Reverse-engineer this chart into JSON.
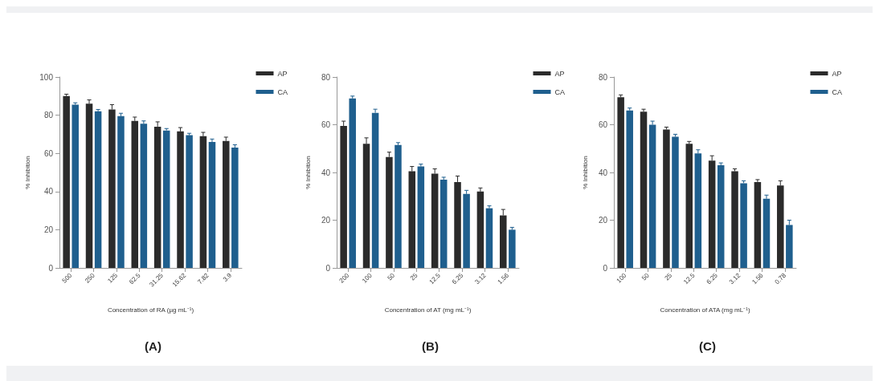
{
  "chart_data": [
    {
      "type": "bar",
      "title": "(A)",
      "xlabel": "Concentration of RA (µg mL⁻¹)",
      "ylabel": "% Inhibition",
      "categories": [
        "500",
        "250",
        "125",
        "62.5",
        "31.25",
        "15.62",
        "7.82",
        "3.9"
      ],
      "ylim": [
        0,
        100
      ],
      "yticks": [
        0,
        20,
        40,
        60,
        80,
        100
      ],
      "grid": false,
      "legend": "top right",
      "series": [
        {
          "name": "AP",
          "color": "#2b2b2b",
          "values": [
            90,
            86,
            83,
            77,
            74,
            71.5,
            69,
            66.5
          ],
          "errors": [
            1,
            2,
            2.5,
            2,
            2.5,
            2,
            2,
            2
          ]
        },
        {
          "name": "CA",
          "color": "#1f5f8e",
          "values": [
            85.5,
            82,
            79.5,
            75.5,
            72,
            69.5,
            66,
            63
          ],
          "errors": [
            1,
            1,
            1.5,
            1.5,
            1,
            1,
            1.5,
            1.5
          ]
        }
      ]
    },
    {
      "type": "bar",
      "title": "(B)",
      "xlabel": "Concentration of AT (mg mL⁻¹)",
      "ylabel": "% Inhibition",
      "categories": [
        "200",
        "100",
        "50",
        "25",
        "12.5",
        "6.25",
        "3.12",
        "1.56"
      ],
      "ylim": [
        0,
        80
      ],
      "yticks": [
        0,
        20,
        40,
        60,
        80
      ],
      "grid": false,
      "legend": "top right",
      "series": [
        {
          "name": "AP",
          "color": "#2b2b2b",
          "values": [
            59.5,
            52,
            46.5,
            40.5,
            39.5,
            36,
            32,
            22
          ],
          "errors": [
            2,
            2.5,
            2,
            2,
            2,
            2.5,
            1.5,
            2.5
          ]
        },
        {
          "name": "CA",
          "color": "#1f5f8e",
          "values": [
            71,
            65,
            51.5,
            42.5,
            37,
            31,
            25,
            16
          ],
          "errors": [
            1,
            1.5,
            1,
            1,
            1,
            1.5,
            1,
            1
          ]
        }
      ]
    },
    {
      "type": "bar",
      "title": "(C)",
      "xlabel": "Concentration of ATA (mg mL⁻¹)",
      "ylabel": "% Inhibition",
      "categories": [
        "100",
        "50",
        "25",
        "12.5",
        "6.25",
        "3.12",
        "1.56",
        "0.78"
      ],
      "ylim": [
        0,
        80
      ],
      "yticks": [
        0,
        20,
        40,
        60,
        80
      ],
      "grid": false,
      "legend": "top right",
      "series": [
        {
          "name": "AP",
          "color": "#2b2b2b",
          "values": [
            71.5,
            65.5,
            58,
            52,
            45,
            40.5,
            36,
            34.5
          ],
          "errors": [
            1,
            1,
            1,
            1,
            2,
            1,
            1,
            2
          ]
        },
        {
          "name": "CA",
          "color": "#1f5f8e",
          "values": [
            66,
            60,
            55,
            48,
            43,
            35.5,
            29,
            18
          ],
          "errors": [
            1,
            1.5,
            1,
            1.5,
            1,
            1,
            1.5,
            2
          ]
        }
      ]
    }
  ]
}
